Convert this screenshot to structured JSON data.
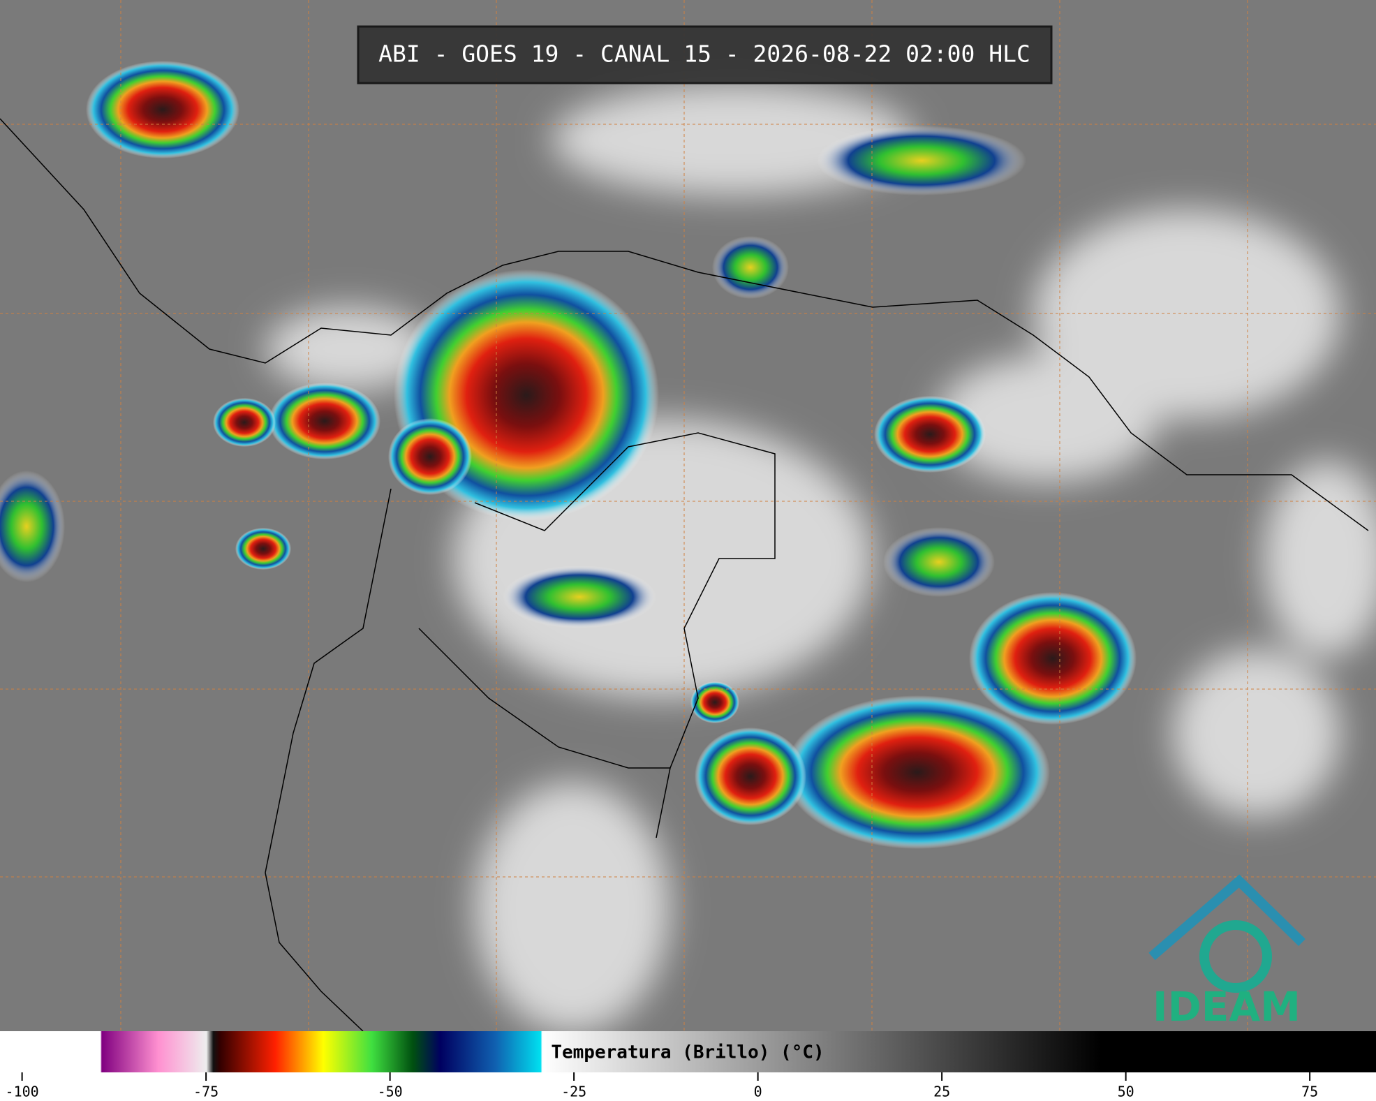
{
  "title": "ABI - GOES 19 - CANAL 15 - 2026-08-22 02:00 HLC",
  "colorbar": {
    "label": "Temperatura (Brillo) (°C)",
    "range": [
      -103,
      84
    ],
    "ticks": [
      -100,
      -75,
      -50,
      -25,
      0,
      25,
      50,
      75
    ]
  },
  "logo": "IDEAM"
}
